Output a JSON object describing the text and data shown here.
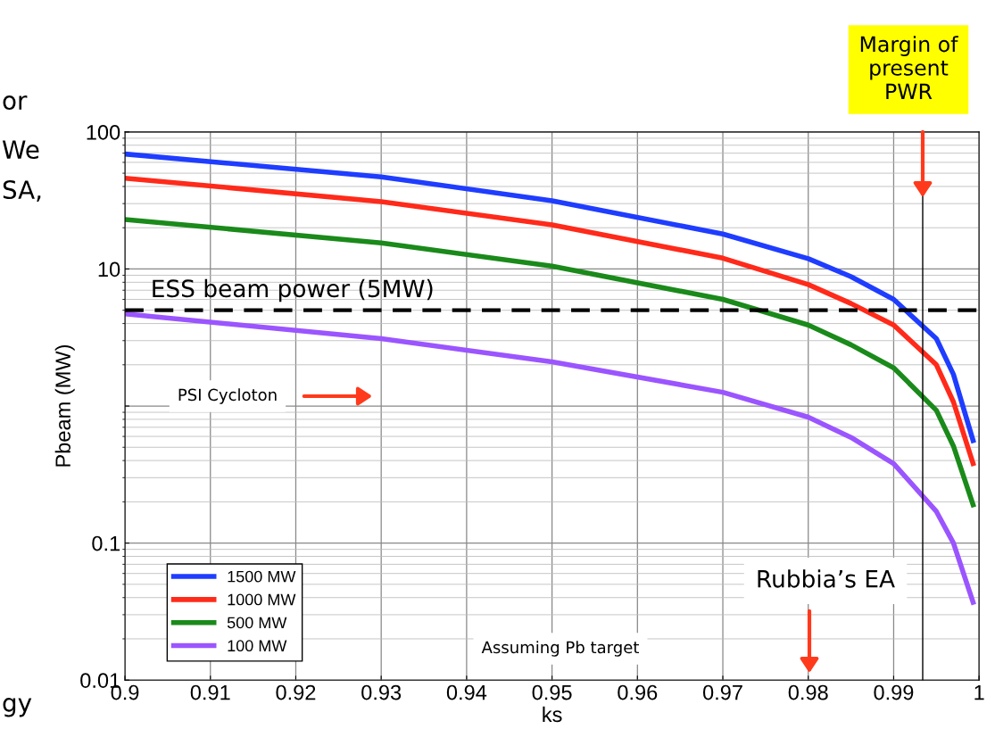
{
  "chart_data": {
    "type": "line",
    "xlabel": "ks",
    "ylabel": "Pbeam (MW)",
    "log": "y",
    "grid": true,
    "legend": "bottom left",
    "line_style": "solid",
    "marker": "none",
    "xlim": [
      0.9,
      1.0
    ],
    "xticks": [
      0.9,
      0.91,
      0.92,
      0.93,
      0.94,
      0.95,
      0.96,
      0.97,
      0.98,
      0.99,
      1
    ],
    "ylim": [
      0.01,
      100
    ],
    "yticks": [
      0.01,
      0.1,
      {
        "value": 1,
        "label": null
      },
      10,
      100
    ],
    "x": [
      0.9,
      0.93,
      0.95,
      0.97,
      0.98,
      0.985,
      0.99,
      0.995,
      0.997,
      0.9993
    ],
    "series": [
      {
        "name": "1500 MW",
        "color": "#1f3dff",
        "values": [
          69,
          47,
          31.5,
          18,
          11.9,
          8.8,
          6.0,
          3.1,
          1.7,
          0.56
        ]
      },
      {
        "name": "1000 MW",
        "color": "#ff2a1a",
        "values": [
          46,
          31,
          21,
          12,
          7.7,
          5.6,
          3.9,
          2.0,
          1.07,
          0.38
        ]
      },
      {
        "name": "500 MW",
        "color": "#1a8a1a",
        "values": [
          23,
          15.5,
          10.5,
          6.0,
          3.9,
          2.8,
          1.9,
          0.93,
          0.51,
          0.19
        ]
      },
      {
        "name": "100 MW",
        "color": "#9b55ff",
        "values": [
          4.7,
          3.1,
          2.1,
          1.26,
          0.83,
          0.59,
          0.38,
          0.17,
          0.1,
          0.037
        ]
      }
    ],
    "ref_lines": [
      {
        "axis": "y",
        "value": 5,
        "label": "ESS beam power (5MW)",
        "color": "#000000",
        "line_style": "dashed"
      },
      {
        "axis": "x",
        "value": 0.9934,
        "color": "#000000",
        "line_style": "solid"
      }
    ],
    "annotations": [
      "PSI Cycloton",
      "Rubbia’s EA",
      "Margin of\npresent\nPWR",
      "Assuming Pb target",
      "or",
      "We",
      "SA,",
      "gy"
    ]
  }
}
